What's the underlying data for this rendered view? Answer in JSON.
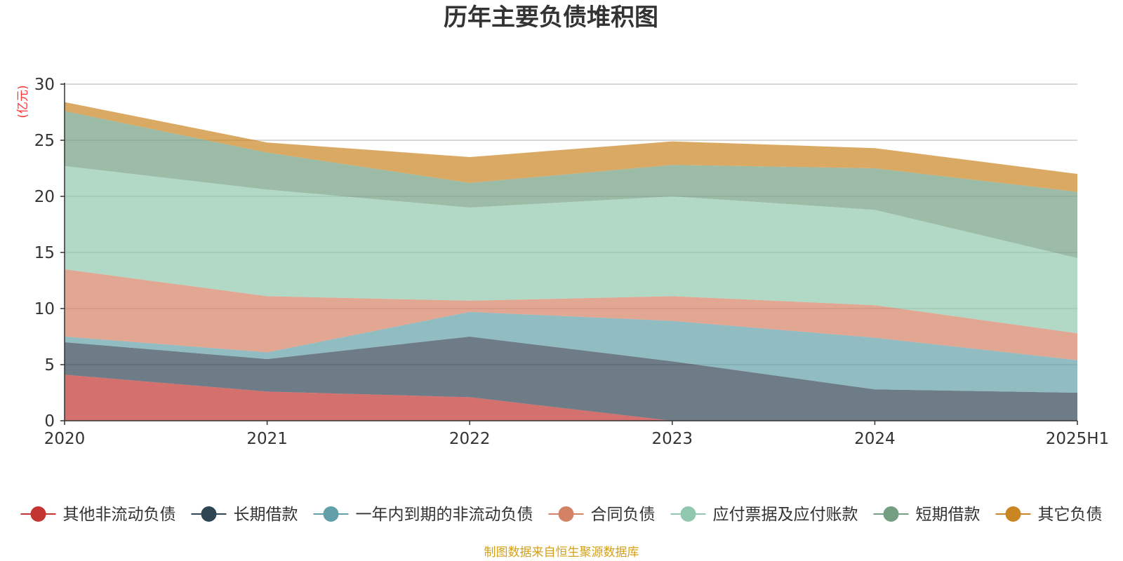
{
  "chart_data": {
    "type": "area",
    "stacked": true,
    "title": "历年主要负债堆积图",
    "ylabel": "(亿元)",
    "xlabel": "",
    "categories": [
      "2020",
      "2021",
      "2022",
      "2023",
      "2024",
      "2025H1"
    ],
    "ylim": [
      0,
      30
    ],
    "yticks": [
      0,
      5,
      10,
      15,
      20,
      25,
      30
    ],
    "grid": true,
    "legend_position": "bottom",
    "series": [
      {
        "name": "其他非流动负债",
        "color": "#c23531",
        "values": [
          4.1,
          2.6,
          2.1,
          0.0,
          0.0,
          0.0
        ]
      },
      {
        "name": "长期借款",
        "color": "#2f4554",
        "values": [
          2.9,
          2.9,
          5.4,
          5.3,
          2.8,
          2.5
        ]
      },
      {
        "name": "一年内到期的非流动负债",
        "color": "#61a0a8",
        "values": [
          0.5,
          0.6,
          2.2,
          3.6,
          4.6,
          2.9
        ]
      },
      {
        "name": "合同负债",
        "color": "#d48265",
        "values": [
          6.0,
          5.0,
          1.0,
          2.2,
          2.9,
          2.4
        ]
      },
      {
        "name": "应付票据及应付账款",
        "color": "#91c7ae",
        "values": [
          9.2,
          9.5,
          8.3,
          8.9,
          8.5,
          6.7
        ]
      },
      {
        "name": "短期借款",
        "color": "#749f83",
        "values": [
          4.9,
          3.3,
          2.2,
          2.8,
          3.7,
          5.9
        ]
      },
      {
        "name": "其它负债",
        "color": "#ca8622",
        "values": [
          0.8,
          0.9,
          2.3,
          2.1,
          1.8,
          1.6
        ]
      }
    ]
  },
  "source_note": "制图数据来自恒生聚源数据库"
}
